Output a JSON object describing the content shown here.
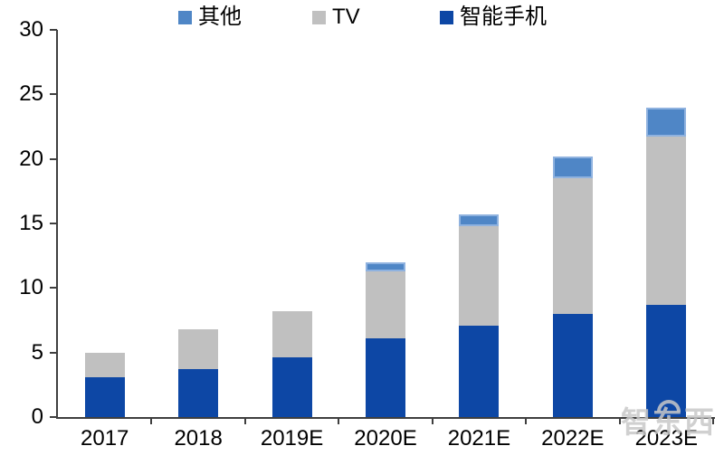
{
  "legend": {
    "items": [
      {
        "label": "其他",
        "key": "other",
        "color": "#4F86C6"
      },
      {
        "label": "TV",
        "key": "tv",
        "color": "#C0C0C0"
      },
      {
        "label": "智能手机",
        "key": "smartphone",
        "color": "#0D47A5"
      }
    ]
  },
  "chart_data": {
    "type": "bar",
    "stacked": true,
    "title": "",
    "xlabel": "",
    "ylabel": "",
    "categories": [
      "2017",
      "2018",
      "2019E",
      "2020E",
      "2021E",
      "2022E",
      "2023E"
    ],
    "series": [
      {
        "name": "智能手机",
        "key": "smartphone",
        "color": "#0D47A5",
        "values": [
          3.1,
          3.7,
          4.6,
          6.1,
          7.1,
          8.0,
          8.7
        ]
      },
      {
        "name": "TV",
        "key": "tv",
        "color": "#C0C0C0",
        "values": [
          1.9,
          3.1,
          3.6,
          5.2,
          7.7,
          10.5,
          13.0
        ]
      },
      {
        "name": "其他",
        "key": "other",
        "color": "#4F86C6",
        "border_color": "#8FB2DF",
        "values": [
          0,
          0,
          0,
          0.7,
          0.9,
          1.7,
          2.3
        ]
      }
    ],
    "totals": [
      5.0,
      6.8,
      8.2,
      12.0,
      15.7,
      20.2,
      24.0
    ],
    "ylim": [
      0,
      30
    ],
    "yticks": [
      0,
      5,
      10,
      15,
      20,
      25,
      30
    ],
    "grid": false,
    "legend_position": "top",
    "axis_color": "#3F3F3F"
  },
  "watermark": {
    "text": "智东西"
  }
}
